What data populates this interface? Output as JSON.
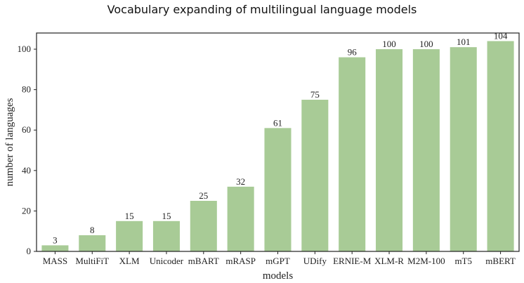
{
  "chart_data": {
    "type": "bar",
    "title": "Vocabulary expanding of multilingual language models",
    "xlabel": "models",
    "ylabel": "number of languages",
    "categories": [
      "MASS",
      "MultiFiT",
      "XLM",
      "Unicoder",
      "mBART",
      "mRASP",
      "mGPT",
      "UDify",
      "ERNIE-M",
      "XLM-R",
      "M2M-100",
      "mT5",
      "mBERT"
    ],
    "values": [
      3,
      8,
      15,
      15,
      25,
      32,
      61,
      75,
      96,
      100,
      100,
      101,
      104
    ],
    "ylim": [
      0,
      108
    ],
    "yticks": [
      0,
      20,
      40,
      60,
      80,
      100
    ],
    "bar_color": "#a8cb96",
    "grid": false,
    "legend": "none"
  }
}
